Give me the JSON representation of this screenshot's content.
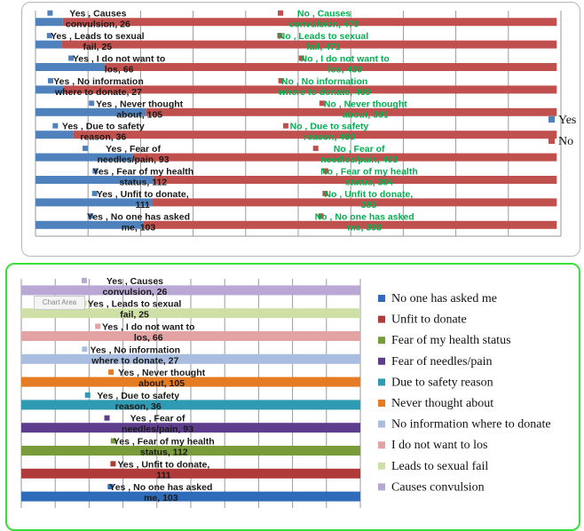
{
  "chart_data": [
    {
      "type": "bar",
      "orientation": "horizontal",
      "stacked": true,
      "categories": [
        "No one has asked me",
        "Unfit to donate",
        "Fear of my health status",
        "Fear of needles/pain",
        "Due to safety reason",
        "Never thought about",
        "No information where to donate",
        "I do not want to los",
        "Leads to sexual fail",
        "Causes convulsion"
      ],
      "series": [
        {
          "name": "Yes",
          "color": "#4f81bd",
          "values": [
            103,
            111,
            112,
            93,
            36,
            105,
            27,
            66,
            25,
            26
          ]
        },
        {
          "name": "No",
          "color": "#c0504d",
          "values": [
            393,
            385,
            384,
            403,
            460,
            391,
            469,
            430,
            471,
            470
          ]
        }
      ],
      "data_labels": {
        "Yes": [
          [
            "Yes , No one has asked",
            "me, 103"
          ],
          [
            "Yes , Unfit to donate,",
            "111"
          ],
          [
            "Yes , Fear of my health",
            "status, 112"
          ],
          [
            "Yes , Fear of",
            "needles/pain, 93"
          ],
          [
            "Yes , Due to safety",
            "reason, 36"
          ],
          [
            "Yes , Never thought",
            "about, 105"
          ],
          [
            "Yes , No information",
            "where to donate, 27"
          ],
          [
            "Yes , I do not want to",
            "los, 66"
          ],
          [
            "Yes , Leads to sexual",
            "fail, 25"
          ],
          [
            "Yes , Causes",
            "convulsion, 26"
          ]
        ],
        "No": [
          [
            "No , No one has asked",
            "me, 393"
          ],
          [
            "No , Unfit to donate,",
            "385"
          ],
          [
            "No , Fear of my health",
            "status, 384"
          ],
          [
            "No , Fear of",
            "needles/pain, 403"
          ],
          [
            "No , Due to safety",
            "reason, 460"
          ],
          [
            "No , Never thought",
            "about, 391"
          ],
          [
            "No , No information",
            "where to donate, 469"
          ],
          [
            "No , I do not want to",
            "los, 430"
          ],
          [
            "No , Leads to sexual",
            "fail, 471"
          ],
          [
            "No , Causes",
            "convulsion, 470"
          ]
        ]
      },
      "xlim": [
        0,
        500
      ],
      "grid": true,
      "legend": {
        "position": "right",
        "entries": [
          "Yes",
          "No"
        ]
      }
    },
    {
      "type": "bar",
      "orientation": "horizontal",
      "categories": [
        "No one has asked me",
        "Unfit to donate",
        "Fear of my health status",
        "Fear of needles/pain",
        "Due to safety reason",
        "Never thought about",
        "No information where to donate",
        "I do not want to los",
        "Leads to sexual fail",
        "Causes convulsion"
      ],
      "colors": [
        "#2e6bb8",
        "#b03a3a",
        "#7a9b3a",
        "#5e3d8f",
        "#2f9bb3",
        "#e57b22",
        "#a9bde0",
        "#e3a3a3",
        "#cfe0a6",
        "#b9a8d3"
      ],
      "label_colors": [
        "#2e6bb8",
        "#b03a3a",
        "#7a9b3a",
        "#5e3d8f",
        "#2f9bb3",
        "#e57b22",
        "#a9bde0",
        "#e3a3a3",
        "#cfe0a6",
        "#b9a8d3"
      ],
      "values": [
        103,
        111,
        112,
        93,
        36,
        105,
        27,
        66,
        25,
        26
      ],
      "data_labels": [
        [
          "Yes , No one has asked",
          "me, 103"
        ],
        [
          "Yes , Unfit to donate,",
          "111"
        ],
        [
          "Yes , Fear of my health",
          "status, 112"
        ],
        [
          "Yes , Fear of",
          "needles/pain, 93"
        ],
        [
          "Yes , Due to safety",
          "reason, 36"
        ],
        [
          "Yes , Never thought",
          "about, 105"
        ],
        [
          "Yes , No information",
          "where to donate, 27"
        ],
        [
          "Yes , I do not want to",
          "los, 66"
        ],
        [
          "Yes , Leads to sexual",
          "fail, 25"
        ],
        [
          "Yes , Causes",
          "convulsion, 26"
        ]
      ],
      "legend": {
        "position": "right",
        "entries": [
          "No one has asked me",
          "Unfit to donate",
          "Fear of my health status",
          "Fear of needles/pain",
          "Due to safety reason",
          "Never thought about",
          "No information where to donate",
          "I do not want to los",
          "Leads to sexual fail",
          "Causes convulsion"
        ]
      },
      "watermark": "Chart Area"
    }
  ]
}
